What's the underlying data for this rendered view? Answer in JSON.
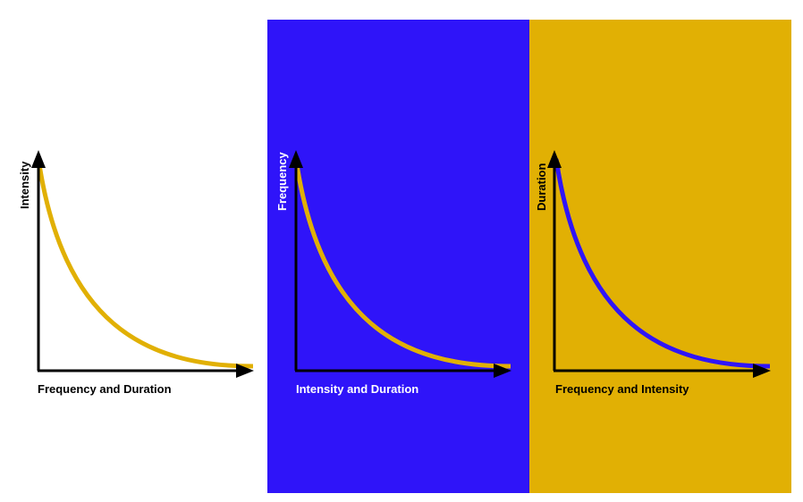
{
  "colors": {
    "blue": "#2f14f9",
    "gold": "#e1b004",
    "white": "#ffffff",
    "black": "#000000"
  },
  "panels": [
    {
      "y_label": "Intensity",
      "x_label": "Frequency and Duration",
      "background": "#ffffff",
      "curve_color": "#e1b004",
      "label_color": "#000000",
      "axis_color": "#000000"
    },
    {
      "y_label": "Frequency",
      "x_label": "Intensity and Duration",
      "background": "#2f14f9",
      "curve_color": "#e1b004",
      "label_color": "#ffffff",
      "axis_color": "#000000"
    },
    {
      "y_label": "Duration",
      "x_label": "Frequency and Intensity",
      "background": "#e1b004",
      "curve_color": "#2f14f9",
      "label_color": "#000000",
      "axis_color": "#000000"
    }
  ]
}
